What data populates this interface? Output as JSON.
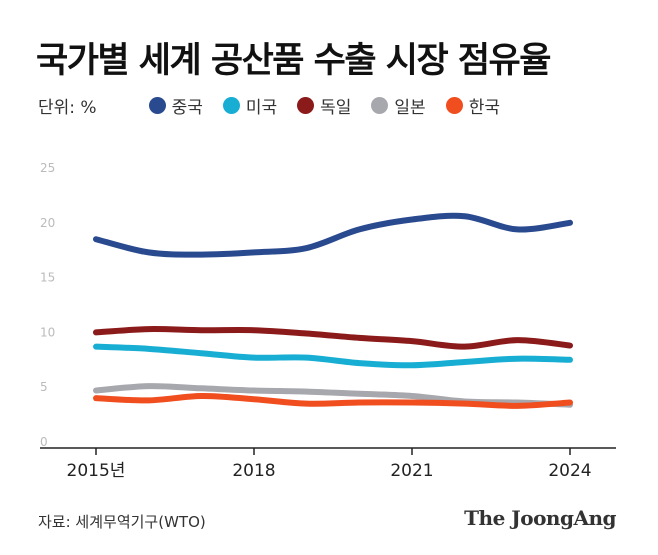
{
  "chart_data": {
    "type": "line",
    "title": "국가별 세계 공산품 수출 시장 점유율",
    "unit_label": "단위: %",
    "x": [
      2015,
      2016,
      2017,
      2018,
      2019,
      2020,
      2021,
      2022,
      2023,
      2024
    ],
    "x_tick_labels": [
      {
        "x": 2015,
        "label": "2015년"
      },
      {
        "x": 2018,
        "label": "2018"
      },
      {
        "x": 2021,
        "label": "2021"
      },
      {
        "x": 2024,
        "label": "2024"
      }
    ],
    "y_ticks": [
      0,
      5,
      10,
      15,
      20,
      25
    ],
    "ylim": [
      0,
      25
    ],
    "grid": false,
    "legend_position": "top",
    "series": [
      {
        "name": "중국",
        "color": "#2a4a8f",
        "values": [
          18.5,
          17.3,
          17.1,
          17.3,
          17.7,
          19.4,
          20.3,
          20.6,
          19.4,
          20.0
        ]
      },
      {
        "name": "미국",
        "color": "#18aed4",
        "values": [
          8.7,
          8.5,
          8.1,
          7.7,
          7.7,
          7.2,
          7.0,
          7.3,
          7.6,
          7.5
        ]
      },
      {
        "name": "독일",
        "color": "#8b1a1a",
        "values": [
          10.0,
          10.3,
          10.2,
          10.2,
          9.9,
          9.5,
          9.2,
          8.7,
          9.3,
          8.8
        ]
      },
      {
        "name": "일본",
        "color": "#a7a7ae",
        "values": [
          4.7,
          5.1,
          4.9,
          4.7,
          4.6,
          4.4,
          4.2,
          3.7,
          3.6,
          3.4
        ]
      },
      {
        "name": "한국",
        "color": "#f04e1f",
        "values": [
          4.0,
          3.8,
          4.2,
          3.9,
          3.5,
          3.6,
          3.6,
          3.5,
          3.3,
          3.6
        ]
      }
    ]
  },
  "source": "자료: 세계무역기구(WTO)",
  "logo": "The JoongAng",
  "colors": {
    "axis": "#222222",
    "tick_text": "#bbbbbb",
    "title": "#111111"
  }
}
